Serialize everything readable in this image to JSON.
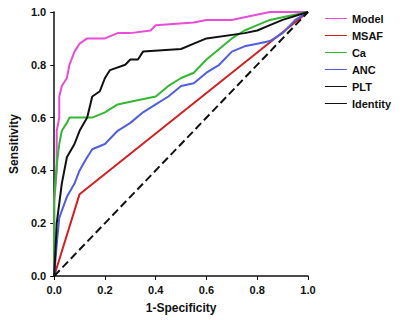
{
  "chart_data": {
    "type": "line",
    "x_label": "1-Specificity",
    "y_label": "Sensitivity",
    "xlim": [
      0,
      1
    ],
    "ylim": [
      0,
      1
    ],
    "xticks": [
      {
        "value": 0,
        "label": "0.0"
      },
      0.2,
      0.4,
      0.6,
      0.8,
      {
        "value": 1,
        "label": "1.0"
      }
    ],
    "yticks": [
      {
        "value": 0,
        "label": "0.0"
      },
      0.2,
      0.4,
      0.6,
      0.8,
      {
        "value": 1,
        "label": "1.0"
      }
    ],
    "grid": false,
    "legend": "right",
    "series": [
      {
        "name": "Model",
        "color": "#e84cd8",
        "line_style": "solid",
        "x": [
          0,
          0,
          0.01,
          0.01,
          0.02,
          0.02,
          0.03,
          0.05,
          0.06,
          0.08,
          0.1,
          0.13,
          0.2,
          0.25,
          0.3,
          0.38,
          0.4,
          0.55,
          0.6,
          0.7,
          0.75,
          0.85,
          1
        ],
        "values": [
          0,
          0.28,
          0.4,
          0.55,
          0.6,
          0.68,
          0.72,
          0.75,
          0.8,
          0.85,
          0.88,
          0.9,
          0.9,
          0.92,
          0.92,
          0.93,
          0.95,
          0.96,
          0.97,
          0.97,
          0.98,
          1,
          1
        ]
      },
      {
        "name": "MSAF",
        "color": "#d42020",
        "line_style": "solid",
        "x": [
          0,
          0.1,
          1
        ],
        "values": [
          0,
          0.31,
          1
        ]
      },
      {
        "name": "Ca",
        "color": "#33b833",
        "line_style": "solid",
        "x": [
          0,
          0,
          0.01,
          0.02,
          0.03,
          0.05,
          0.06,
          0.15,
          0.2,
          0.25,
          0.3,
          0.4,
          0.45,
          0.5,
          0.55,
          0.6,
          0.65,
          0.7,
          0.75,
          0.8,
          0.85,
          0.9,
          1
        ],
        "values": [
          0,
          0.3,
          0.42,
          0.5,
          0.55,
          0.58,
          0.6,
          0.6,
          0.62,
          0.65,
          0.66,
          0.68,
          0.72,
          0.75,
          0.77,
          0.82,
          0.86,
          0.9,
          0.93,
          0.95,
          0.97,
          0.98,
          1
        ]
      },
      {
        "name": "ANC",
        "color": "#4f5fe0",
        "line_style": "solid",
        "x": [
          0,
          0.01,
          0.02,
          0.05,
          0.08,
          0.1,
          0.13,
          0.15,
          0.2,
          0.25,
          0.3,
          0.35,
          0.4,
          0.45,
          0.5,
          0.55,
          0.6,
          0.65,
          0.7,
          0.75,
          0.8,
          0.85,
          0.9,
          0.95,
          1
        ],
        "values": [
          0,
          0.12,
          0.22,
          0.3,
          0.35,
          0.4,
          0.45,
          0.48,
          0.5,
          0.55,
          0.58,
          0.62,
          0.65,
          0.68,
          0.72,
          0.73,
          0.77,
          0.8,
          0.85,
          0.87,
          0.88,
          0.89,
          0.92,
          0.97,
          1
        ]
      },
      {
        "name": "PLT",
        "color": "#111111",
        "line_style": "solid",
        "x": [
          0,
          0.01,
          0.03,
          0.05,
          0.08,
          0.1,
          0.13,
          0.15,
          0.18,
          0.2,
          0.22,
          0.28,
          0.3,
          0.33,
          0.35,
          0.5,
          0.55,
          0.6,
          0.75,
          0.8,
          0.85,
          0.9,
          1
        ],
        "values": [
          0,
          0.2,
          0.35,
          0.45,
          0.5,
          0.55,
          0.6,
          0.68,
          0.7,
          0.75,
          0.78,
          0.8,
          0.82,
          0.82,
          0.85,
          0.86,
          0.88,
          0.9,
          0.92,
          0.93,
          0.95,
          0.97,
          1
        ]
      },
      {
        "name": "Identity",
        "color": "#111111",
        "line_style": "dashed",
        "x": [
          0,
          1
        ],
        "values": [
          0,
          1
        ]
      }
    ]
  }
}
